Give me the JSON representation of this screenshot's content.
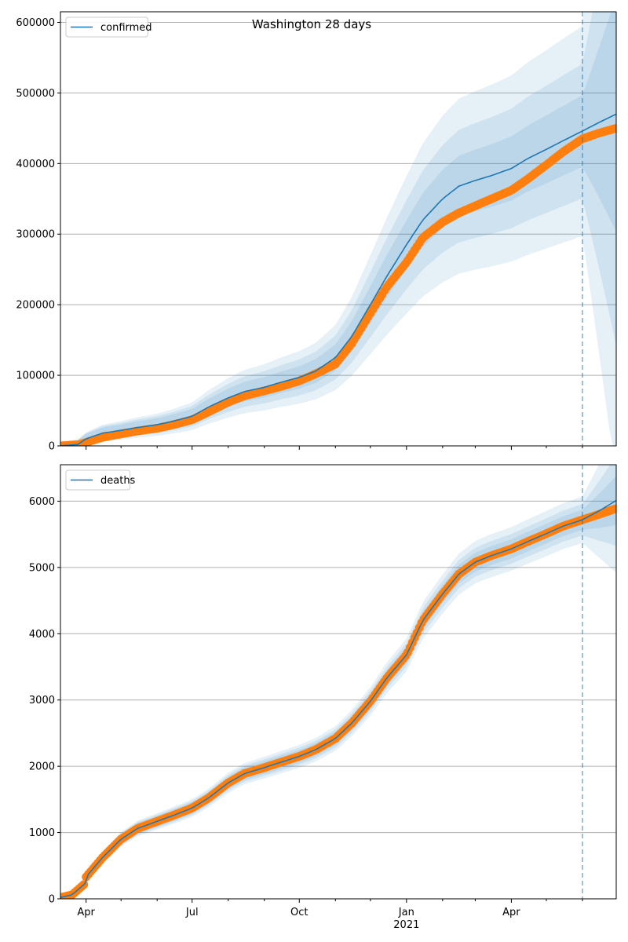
{
  "figure": {
    "title": "Washington 28 days"
  },
  "colors": {
    "model": "#1f77b4",
    "observed": "#ff7f0e",
    "band": "#1f77b4",
    "grid": "#b0b0b0",
    "split_line": "#1f77b4"
  },
  "x_axis": {
    "range": [
      "2020-03-10",
      "2021-06-30"
    ],
    "major_ticks": [
      {
        "date": "2020-04-01",
        "label": "Apr"
      },
      {
        "date": "2020-07-01",
        "label": "Jul"
      },
      {
        "date": "2020-10-01",
        "label": "Oct"
      },
      {
        "date": "2021-01-01",
        "label": "Jan"
      },
      {
        "date": "2021-04-01",
        "label": "Apr"
      }
    ],
    "minor_ticks": [
      "2020-05-01",
      "2020-06-01",
      "2020-08-01",
      "2020-09-01",
      "2020-11-01",
      "2020-12-01",
      "2021-02-01",
      "2021-03-01",
      "2021-05-01",
      "2021-06-01"
    ],
    "year_label": "2021",
    "year_label_date": "2021-01-01"
  },
  "chart_data": [
    {
      "type": "line",
      "title": "Washington 28 days",
      "legend": [
        "confirmed"
      ],
      "legend_position": "top-left",
      "grid": "horizontal",
      "ylim": [
        0,
        615000
      ],
      "yticks": [
        0,
        100000,
        200000,
        300000,
        400000,
        500000,
        600000
      ],
      "ytick_labels": [
        "0",
        "100000",
        "200000",
        "300000",
        "400000",
        "500000",
        "600000"
      ],
      "forecast_start": "2021-06-01",
      "series": [
        {
          "name": "confirmed",
          "style": "line",
          "x": [
            "2020-03-10",
            "2020-03-25",
            "2020-04-01",
            "2020-04-15",
            "2020-05-01",
            "2020-05-15",
            "2020-06-01",
            "2020-06-15",
            "2020-07-01",
            "2020-07-15",
            "2020-08-01",
            "2020-08-15",
            "2020-09-01",
            "2020-09-15",
            "2020-10-01",
            "2020-10-15",
            "2020-11-01",
            "2020-11-15",
            "2020-12-01",
            "2020-12-15",
            "2021-01-01",
            "2021-01-15",
            "2021-02-01",
            "2021-02-15",
            "2021-03-01",
            "2021-03-15",
            "2021-04-01",
            "2021-04-15",
            "2021-05-01",
            "2021-05-15",
            "2021-06-01",
            "2021-06-15",
            "2021-06-30"
          ],
          "y": [
            0,
            2000,
            10000,
            18000,
            22000,
            26000,
            30000,
            35000,
            42000,
            55000,
            68000,
            77000,
            83000,
            90000,
            97000,
            106000,
            125000,
            155000,
            200000,
            240000,
            285000,
            320000,
            350000,
            368000,
            376000,
            383000,
            393000,
            407000,
            420000,
            432000,
            446000,
            458000,
            470000
          ]
        },
        {
          "name": "observed",
          "style": "markers",
          "x": [
            "2020-03-10",
            "2020-03-25",
            "2020-04-01",
            "2020-04-15",
            "2020-05-01",
            "2020-05-15",
            "2020-06-01",
            "2020-06-15",
            "2020-07-01",
            "2020-07-15",
            "2020-08-01",
            "2020-08-15",
            "2020-09-01",
            "2020-09-15",
            "2020-10-01",
            "2020-10-15",
            "2020-11-01",
            "2020-11-15",
            "2020-12-01",
            "2020-12-15",
            "2021-01-01",
            "2021-01-15",
            "2021-02-01",
            "2021-02-15",
            "2021-03-01",
            "2021-03-15",
            "2021-04-01",
            "2021-04-15",
            "2021-05-01",
            "2021-05-15",
            "2021-06-01",
            "2021-06-15",
            "2021-06-30"
          ],
          "y": [
            0,
            1500,
            5000,
            12000,
            17000,
            21000,
            25000,
            30000,
            37000,
            48000,
            62000,
            71000,
            78000,
            84000,
            92000,
            102000,
            116000,
            145000,
            188000,
            225000,
            260000,
            295000,
            317000,
            330000,
            340000,
            350000,
            362000,
            378000,
            398000,
            416000,
            435000,
            443000,
            450000
          ]
        }
      ],
      "band_halfwidth_fraction": [
        0.1,
        0.2,
        0.32
      ]
    },
    {
      "type": "line",
      "legend": [
        "deaths"
      ],
      "legend_position": "top-left",
      "grid": "horizontal",
      "ylim": [
        0,
        6550
      ],
      "yticks": [
        0,
        1000,
        2000,
        3000,
        4000,
        5000,
        6000
      ],
      "ytick_labels": [
        "0",
        "1000",
        "2000",
        "3000",
        "4000",
        "5000",
        "6000"
      ],
      "forecast_start": "2021-06-01",
      "series": [
        {
          "name": "deaths",
          "style": "line",
          "x": [
            "2020-03-10",
            "2020-03-20",
            "2020-03-31",
            "2020-04-01",
            "2020-04-15",
            "2020-05-01",
            "2020-05-15",
            "2020-06-01",
            "2020-06-15",
            "2020-07-01",
            "2020-07-15",
            "2020-08-01",
            "2020-08-15",
            "2020-09-01",
            "2020-09-15",
            "2020-10-01",
            "2020-10-15",
            "2020-11-01",
            "2020-11-15",
            "2020-12-01",
            "2020-12-15",
            "2021-01-01",
            "2021-01-15",
            "2021-02-01",
            "2021-02-15",
            "2021-03-01",
            "2021-03-15",
            "2021-04-01",
            "2021-04-15",
            "2021-05-01",
            "2021-05-15",
            "2021-06-01",
            "2021-06-15",
            "2021-06-30"
          ],
          "y": [
            20,
            60,
            230,
            330,
            620,
            900,
            1060,
            1170,
            1260,
            1370,
            1520,
            1750,
            1890,
            1980,
            2060,
            2150,
            2250,
            2420,
            2650,
            2980,
            3330,
            3680,
            4200,
            4600,
            4900,
            5080,
            5180,
            5280,
            5390,
            5510,
            5620,
            5720,
            5850,
            6010
          ]
        },
        {
          "name": "observed",
          "style": "markers",
          "x": [
            "2020-03-10",
            "2020-03-20",
            "2020-03-31",
            "2020-04-01",
            "2020-04-15",
            "2020-05-01",
            "2020-05-15",
            "2020-06-01",
            "2020-06-15",
            "2020-07-01",
            "2020-07-15",
            "2020-08-01",
            "2020-08-15",
            "2020-09-01",
            "2020-09-15",
            "2020-10-01",
            "2020-10-15",
            "2020-11-01",
            "2020-11-15",
            "2020-12-01",
            "2020-12-15",
            "2021-01-01",
            "2021-01-15",
            "2021-02-01",
            "2021-02-15",
            "2021-03-01",
            "2021-03-15",
            "2021-04-01",
            "2021-04-15",
            "2021-05-01",
            "2021-05-15",
            "2021-06-01",
            "2021-06-15",
            "2021-06-30"
          ],
          "y": [
            20,
            60,
            230,
            330,
            620,
            900,
            1060,
            1170,
            1260,
            1370,
            1520,
            1750,
            1890,
            1980,
            2060,
            2150,
            2250,
            2420,
            2650,
            2980,
            3330,
            3680,
            4200,
            4600,
            4900,
            5080,
            5180,
            5280,
            5390,
            5510,
            5620,
            5720,
            5800,
            5890
          ]
        }
      ],
      "band_halfwidth_fraction": [
        0.015,
        0.03,
        0.05
      ]
    }
  ]
}
